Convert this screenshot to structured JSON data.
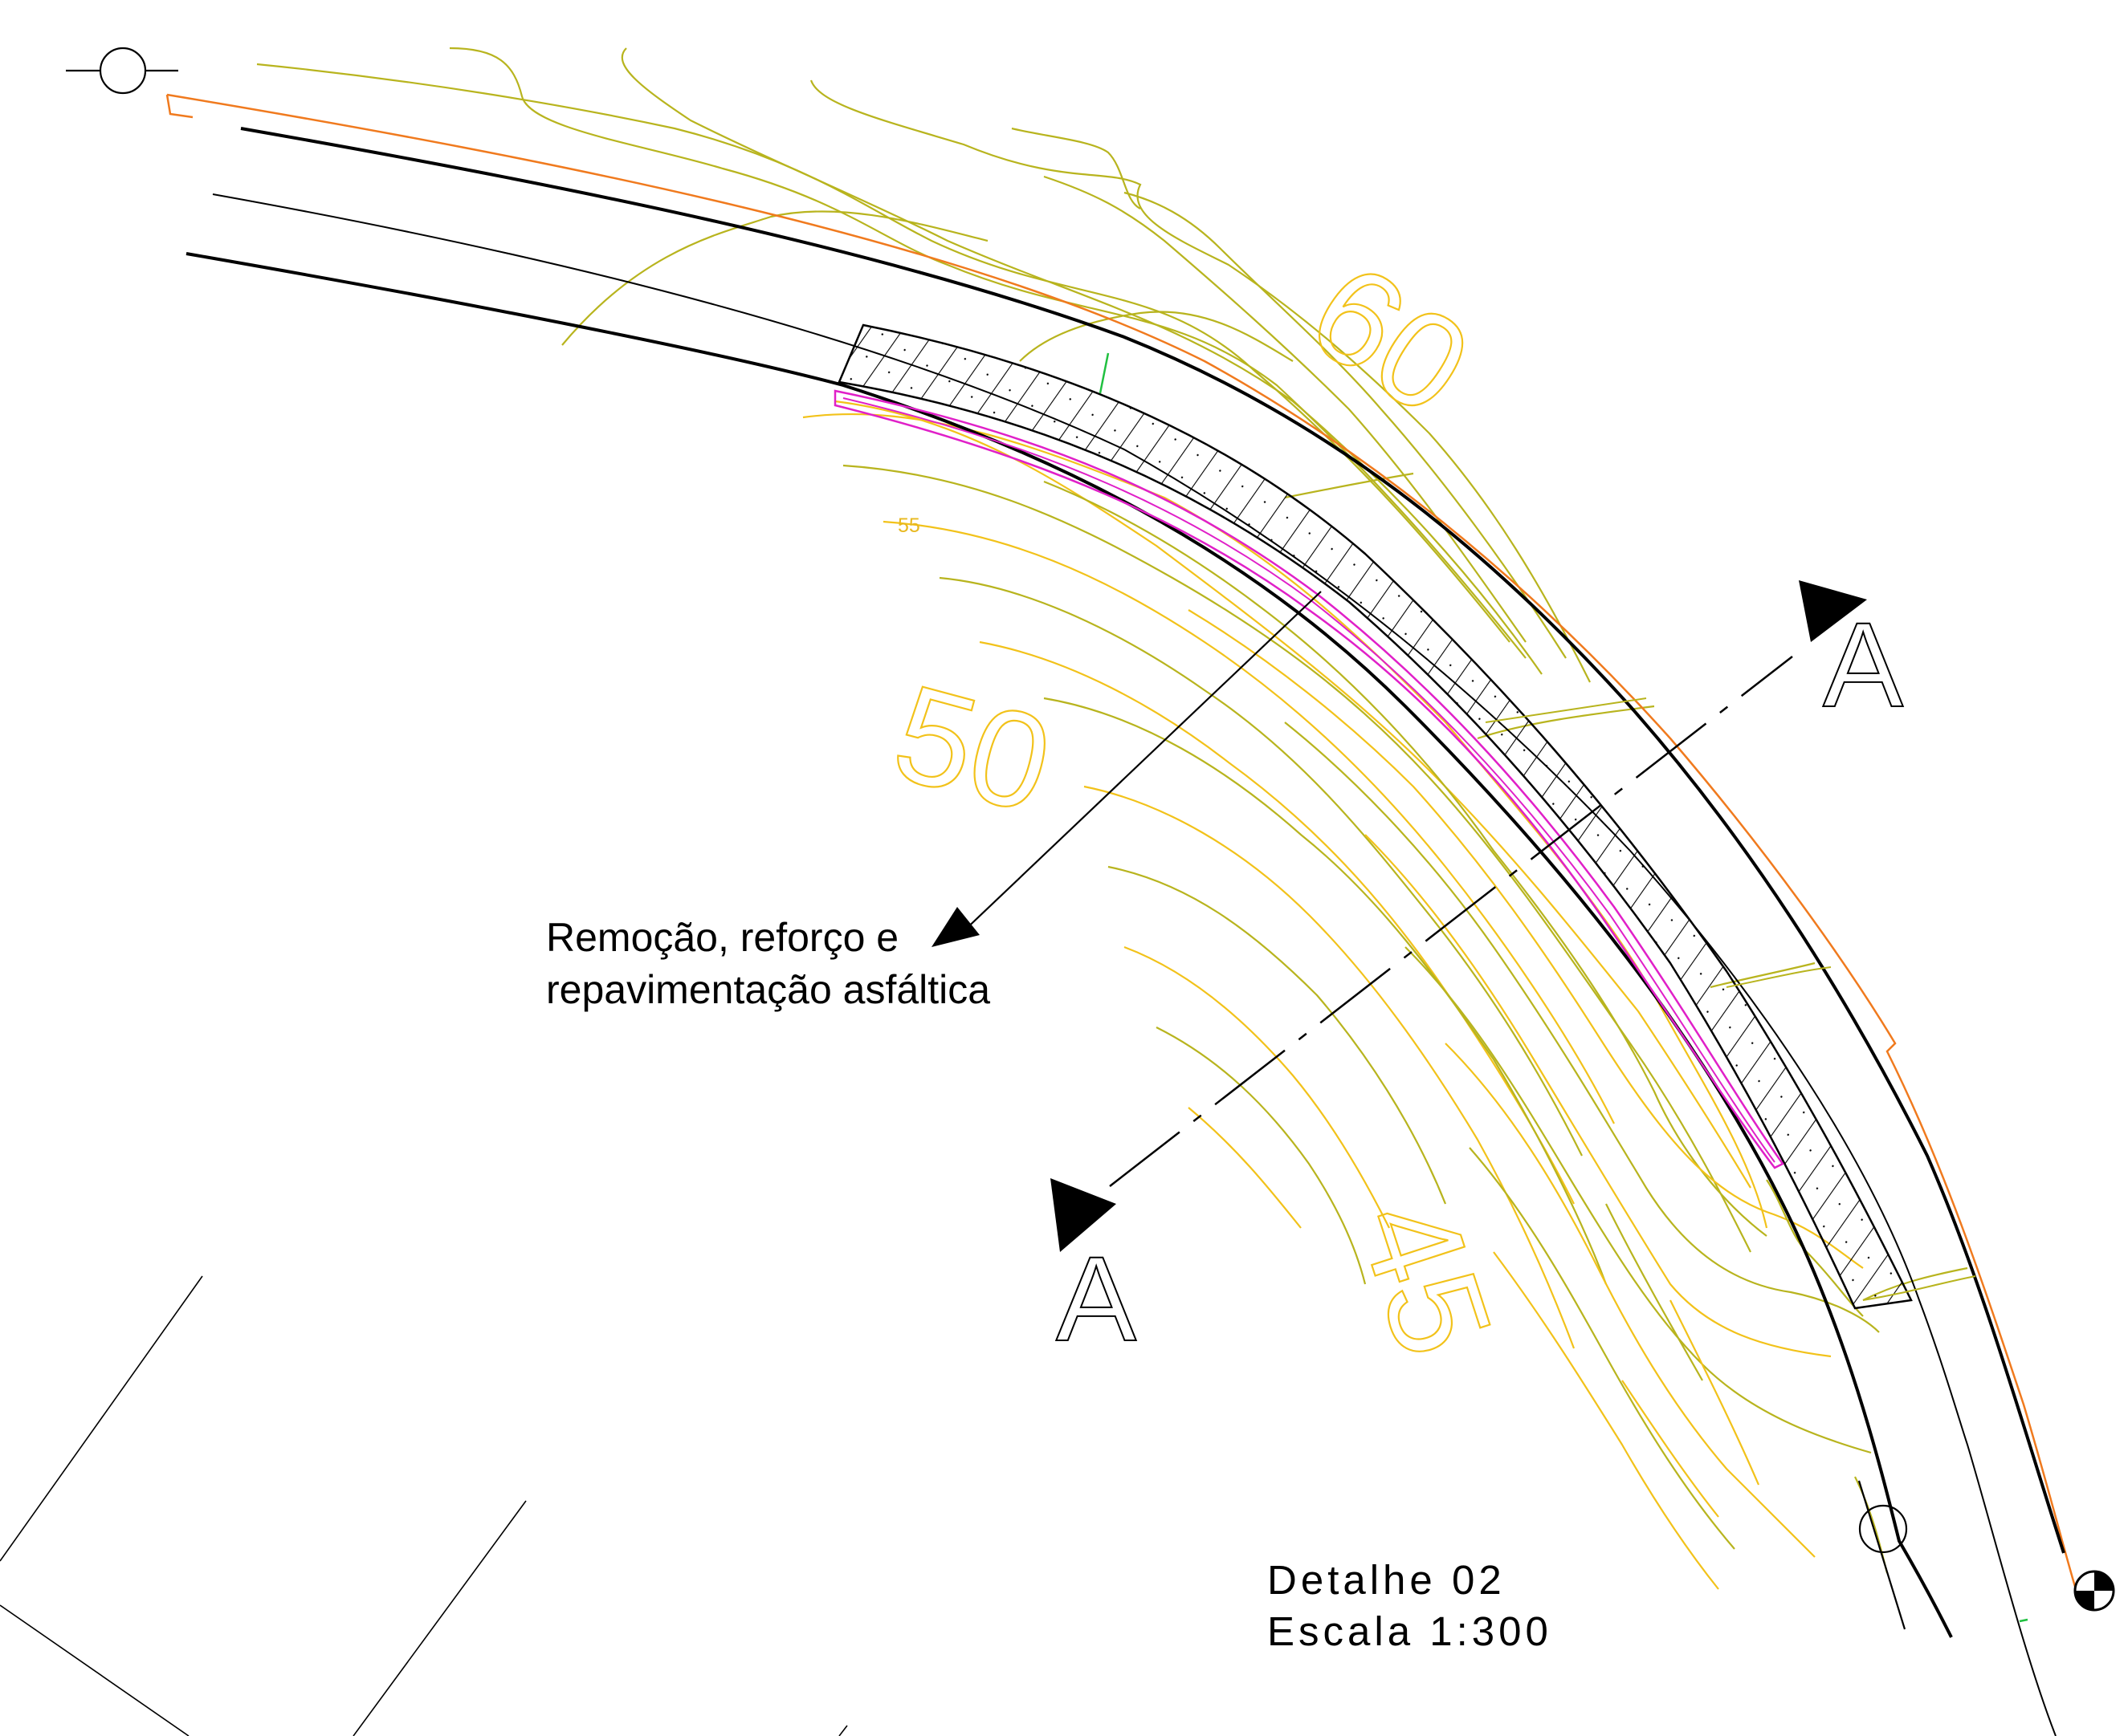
{
  "drawing": {
    "annotation": {
      "line1": "Remoção, reforço e",
      "line2": "repavimentação asfáltica"
    },
    "detail": {
      "title": "Detalhe 02",
      "scale": "Escala 1:300"
    },
    "section": {
      "top_label": "A",
      "bottom_label": "A"
    },
    "contour_labels": {
      "c60": "60",
      "c50": "50",
      "c45": "45",
      "c55": "55"
    },
    "colors": {
      "contour_yellow": "#f2c21a",
      "contour_olive": "#b8b41e",
      "road_edge_orange": "#f07a1e",
      "repair_magenta": "#e020c8",
      "line_black": "#000000",
      "tick_green": "#20c040"
    }
  }
}
